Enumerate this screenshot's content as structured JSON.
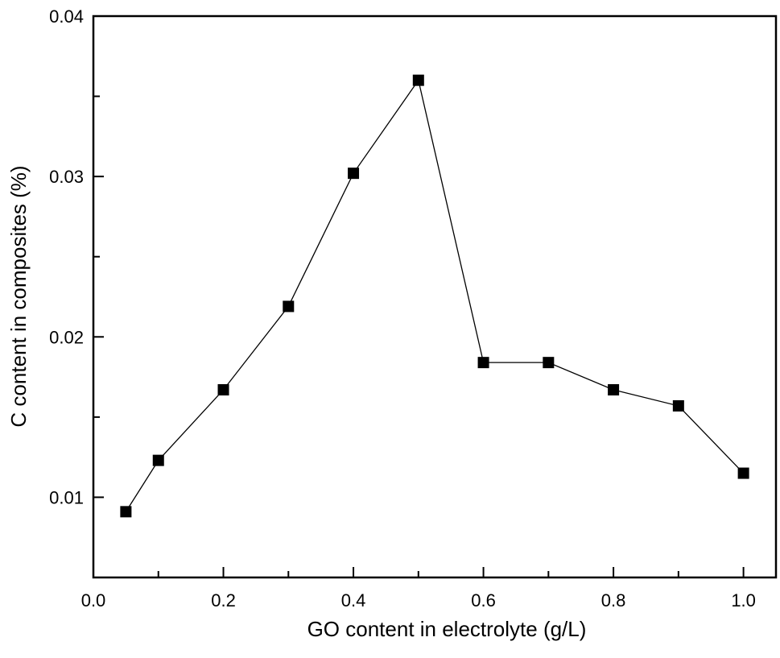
{
  "chart_data": {
    "type": "line",
    "title": "",
    "xlabel": "GO content in electrolyte (g/L)",
    "ylabel": "C content in composites (%)",
    "xlim": [
      0.0,
      1.05
    ],
    "ylim": [
      0.005,
      0.04
    ],
    "x_ticks": [
      "0.0",
      "0.2",
      "0.4",
      "0.6",
      "0.8",
      "1.0"
    ],
    "y_ticks": [
      "0.01",
      "0.02",
      "0.03",
      "0.04"
    ],
    "grid": false,
    "marker": "square",
    "series": [
      {
        "x": [
          0.05,
          0.1,
          0.2,
          0.3,
          0.4,
          0.5,
          0.6,
          0.7,
          0.8,
          0.9,
          1.0
        ],
        "y": [
          0.0091,
          0.0123,
          0.0167,
          0.0219,
          0.0302,
          0.036,
          0.0184,
          0.0184,
          0.0167,
          0.0157,
          0.0115
        ],
        "color": "#000000"
      }
    ]
  }
}
